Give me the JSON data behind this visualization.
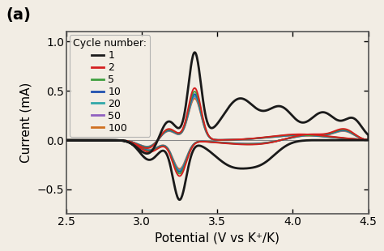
{
  "title": "(a)",
  "xlabel": "Potential (V vs K⁺/K)",
  "ylabel": "Current (mA)",
  "xlim": [
    2.5,
    4.5
  ],
  "ylim": [
    -0.75,
    1.1
  ],
  "xticks": [
    2.5,
    3.0,
    3.5,
    4.0,
    4.5
  ],
  "yticks": [
    -0.5,
    0.0,
    0.5,
    1.0
  ],
  "legend_title": "Cycle number:",
  "cycles": [
    1,
    2,
    5,
    10,
    20,
    50,
    100
  ],
  "colors": [
    "#1a1a1a",
    "#d42020",
    "#40a040",
    "#2050b0",
    "#30a8a8",
    "#9060c0",
    "#d07020"
  ],
  "background": "#f2ede4",
  "figsize": [
    2.37,
    1.55
  ],
  "dpi": 200
}
